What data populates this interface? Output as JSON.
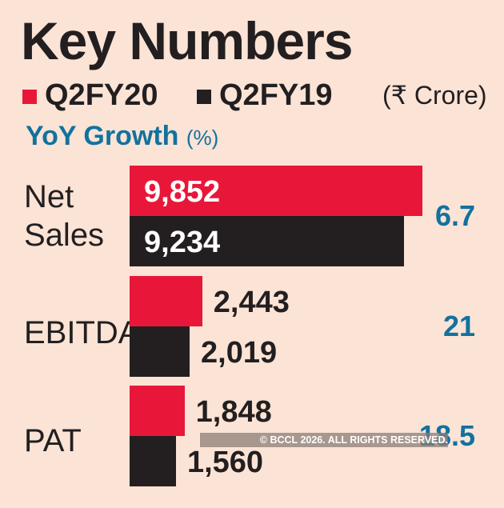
{
  "chart_data": {
    "type": "bar",
    "orientation": "horizontal",
    "title": "Key Numbers",
    "unit": "(₹ Crore)",
    "categories": [
      "Net\nSales",
      "EBITDA",
      "PAT"
    ],
    "series": [
      {
        "name": "Q2FY20",
        "color": "#e8173a",
        "values": [
          9852,
          2443,
          1848
        ],
        "labels": [
          "9,852",
          "2,443",
          "1,848"
        ]
      },
      {
        "name": "Q2FY19",
        "color": "#231f20",
        "values": [
          9234,
          2019,
          1560
        ],
        "labels": [
          "9,234",
          "2,019",
          "1,560"
        ]
      }
    ],
    "growth": {
      "title": "YoY Growth",
      "unit": "(%)",
      "values": [
        "6.7",
        "21",
        "18.5"
      ],
      "color": "#11729e"
    },
    "grid": false,
    "legend": "top-left"
  },
  "watermark": "© BCCL 2026. ALL RIGHTS RESERVED."
}
